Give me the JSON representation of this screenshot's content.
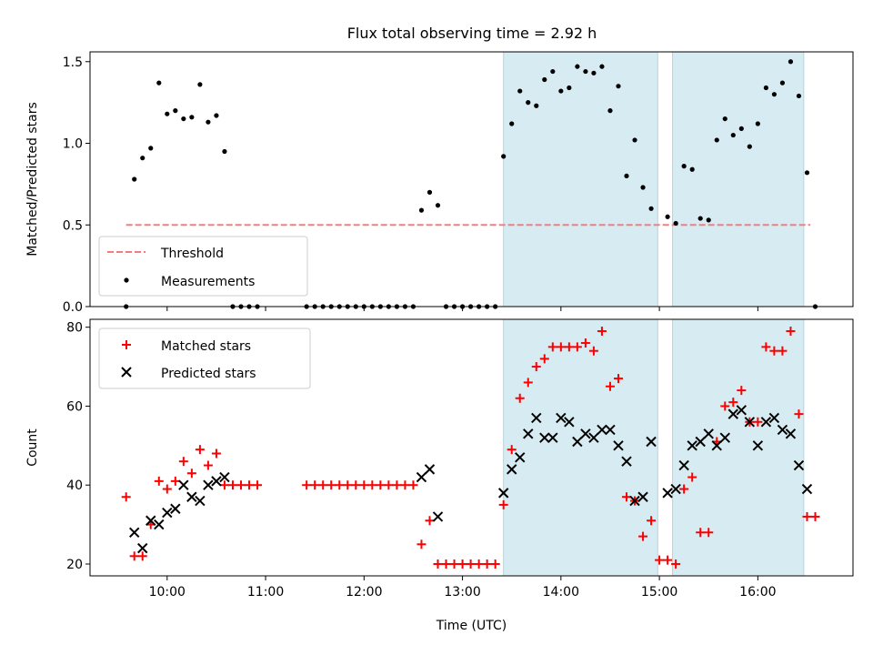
{
  "title": "Flux total observing time = 2.92 h",
  "colors": {
    "threshold": "#f08080",
    "measurements": "#000000",
    "matched": "#ff0000",
    "predicted": "#000000",
    "shade": "#add8e6"
  },
  "chart_data": [
    {
      "type": "scatter",
      "ylabel": "Matched/Predicted stars",
      "ylim": [
        0,
        1.56
      ],
      "yticks": [
        "0.0",
        "0.5",
        "1.0",
        "1.5"
      ],
      "ytick_values": [
        0,
        0.5,
        1.0,
        1.5
      ],
      "legend": {
        "placement": "lower-left",
        "entries": [
          "Threshold",
          "Measurements"
        ]
      },
      "threshold": {
        "value": 0.5,
        "x_range": [
          "09:35",
          "16:32"
        ]
      },
      "shaded_spans": [
        [
          "13:25",
          "14:59"
        ],
        [
          "15:08",
          "16:28"
        ]
      ],
      "measurements": {
        "x": [
          "09:35",
          "09:40",
          "09:45",
          "09:50",
          "09:55",
          "10:00",
          "10:05",
          "10:10",
          "10:15",
          "10:20",
          "10:25",
          "10:30",
          "10:35",
          "10:40",
          "10:45",
          "10:50",
          "10:55",
          "11:25",
          "11:30",
          "11:35",
          "11:40",
          "11:45",
          "11:50",
          "11:55",
          "12:00",
          "12:05",
          "12:10",
          "12:15",
          "12:20",
          "12:25",
          "12:30",
          "12:35",
          "12:40",
          "12:45",
          "12:50",
          "12:55",
          "13:00",
          "13:05",
          "13:10",
          "13:15",
          "13:20",
          "13:25",
          "13:30",
          "13:35",
          "13:40",
          "13:45",
          "13:50",
          "13:55",
          "14:00",
          "14:05",
          "14:10",
          "14:15",
          "14:20",
          "14:25",
          "14:30",
          "14:35",
          "14:40",
          "14:45",
          "14:50",
          "14:55",
          "15:05",
          "15:10",
          "15:15",
          "15:20",
          "15:25",
          "15:30",
          "15:35",
          "15:40",
          "15:45",
          "15:50",
          "15:55",
          "16:00",
          "16:05",
          "16:10",
          "16:15",
          "16:20",
          "16:25",
          "16:30",
          "16:35"
        ],
        "y": [
          0,
          0.78,
          0.91,
          0.97,
          1.37,
          1.18,
          1.2,
          1.15,
          1.16,
          1.36,
          1.13,
          1.17,
          0.95,
          0,
          0,
          0,
          0,
          0,
          0,
          0,
          0,
          0,
          0,
          0,
          0,
          0,
          0,
          0,
          0,
          0,
          0,
          0.59,
          0.7,
          0.62,
          0,
          0,
          0,
          0,
          0,
          0,
          0,
          0.92,
          1.12,
          1.32,
          1.25,
          1.23,
          1.39,
          1.44,
          1.32,
          1.34,
          1.47,
          1.44,
          1.43,
          1.47,
          1.2,
          1.35,
          0.8,
          1.02,
          0.73,
          0.6,
          0.55,
          0.51,
          0.86,
          0.84,
          0.54,
          0.53,
          1.02,
          1.15,
          1.05,
          1.09,
          0.98,
          1.12,
          1.34,
          1.3,
          1.37,
          1.5,
          1.29,
          0.82,
          0
        ]
      }
    },
    {
      "type": "scatter",
      "xlabel": "Time (UTC)",
      "ylabel": "Count",
      "ylim": [
        17,
        82
      ],
      "yticks": [
        "20",
        "40",
        "60",
        "80"
      ],
      "ytick_values": [
        20,
        40,
        60,
        80
      ],
      "xlim": [
        "09:13",
        "16:58"
      ],
      "xticks": [
        "10:00",
        "11:00",
        "12:00",
        "13:00",
        "14:00",
        "15:00",
        "16:00"
      ],
      "legend": {
        "placement": "upper-left",
        "entries": [
          "Matched stars",
          "Predicted stars"
        ]
      },
      "shaded_spans": [
        [
          "13:25",
          "14:59"
        ],
        [
          "15:08",
          "16:28"
        ]
      ],
      "series": [
        {
          "name": "Matched stars",
          "marker": "+",
          "x": [
            "09:35",
            "09:40",
            "09:45",
            "09:50",
            "09:55",
            "10:00",
            "10:05",
            "10:10",
            "10:15",
            "10:20",
            "10:25",
            "10:30",
            "10:35",
            "10:40",
            "10:45",
            "10:50",
            "10:55",
            "11:25",
            "11:30",
            "11:35",
            "11:40",
            "11:45",
            "11:50",
            "11:55",
            "12:00",
            "12:05",
            "12:10",
            "12:15",
            "12:20",
            "12:25",
            "12:30",
            "12:35",
            "12:40",
            "12:45",
            "12:50",
            "12:55",
            "13:00",
            "13:05",
            "13:10",
            "13:15",
            "13:20",
            "13:25",
            "13:30",
            "13:35",
            "13:40",
            "13:45",
            "13:50",
            "13:55",
            "14:00",
            "14:05",
            "14:10",
            "14:15",
            "14:20",
            "14:25",
            "14:30",
            "14:35",
            "14:40",
            "14:45",
            "14:50",
            "14:55",
            "15:00",
            "15:05",
            "15:10",
            "15:15",
            "15:20",
            "15:25",
            "15:30",
            "15:35",
            "15:40",
            "15:45",
            "15:50",
            "15:55",
            "16:00",
            "16:05",
            "16:10",
            "16:15",
            "16:20",
            "16:25",
            "16:30",
            "16:35"
          ],
          "y": [
            37,
            22,
            22,
            30,
            41,
            39,
            41,
            46,
            43,
            49,
            45,
            48,
            40,
            40,
            40,
            40,
            40,
            40,
            40,
            40,
            40,
            40,
            40,
            40,
            40,
            40,
            40,
            40,
            40,
            40,
            40,
            25,
            31,
            20,
            20,
            20,
            20,
            20,
            20,
            20,
            20,
            35,
            49,
            62,
            66,
            70,
            72,
            75,
            75,
            75,
            75,
            76,
            74,
            79,
            65,
            67,
            37,
            36,
            27,
            31,
            21,
            21,
            20,
            39,
            42,
            28,
            28,
            51,
            60,
            61,
            64,
            56,
            56,
            75,
            74,
            74,
            79,
            58,
            32,
            32
          ]
        },
        {
          "name": "Predicted stars",
          "marker": "x",
          "x": [
            "09:40",
            "09:45",
            "09:50",
            "09:55",
            "10:00",
            "10:05",
            "10:10",
            "10:15",
            "10:20",
            "10:25",
            "10:30",
            "10:35",
            "12:35",
            "12:40",
            "12:45",
            "13:25",
            "13:30",
            "13:35",
            "13:40",
            "13:45",
            "13:50",
            "13:55",
            "14:00",
            "14:05",
            "14:10",
            "14:15",
            "14:20",
            "14:25",
            "14:30",
            "14:35",
            "14:40",
            "14:45",
            "14:50",
            "14:55",
            "15:05",
            "15:10",
            "15:15",
            "15:20",
            "15:25",
            "15:30",
            "15:35",
            "15:40",
            "15:45",
            "15:50",
            "15:55",
            "16:00",
            "16:05",
            "16:10",
            "16:15",
            "16:20",
            "16:25",
            "16:30"
          ],
          "y": [
            28,
            24,
            31,
            30,
            33,
            34,
            40,
            37,
            36,
            40,
            41,
            42,
            42,
            44,
            32,
            38,
            44,
            47,
            53,
            57,
            52,
            52,
            57,
            56,
            51,
            53,
            52,
            54,
            54,
            50,
            46,
            36,
            37,
            51,
            38,
            39,
            45,
            50,
            51,
            53,
            50,
            52,
            58,
            59,
            56,
            50,
            56,
            57,
            54,
            53,
            45,
            39
          ]
        }
      ]
    }
  ]
}
